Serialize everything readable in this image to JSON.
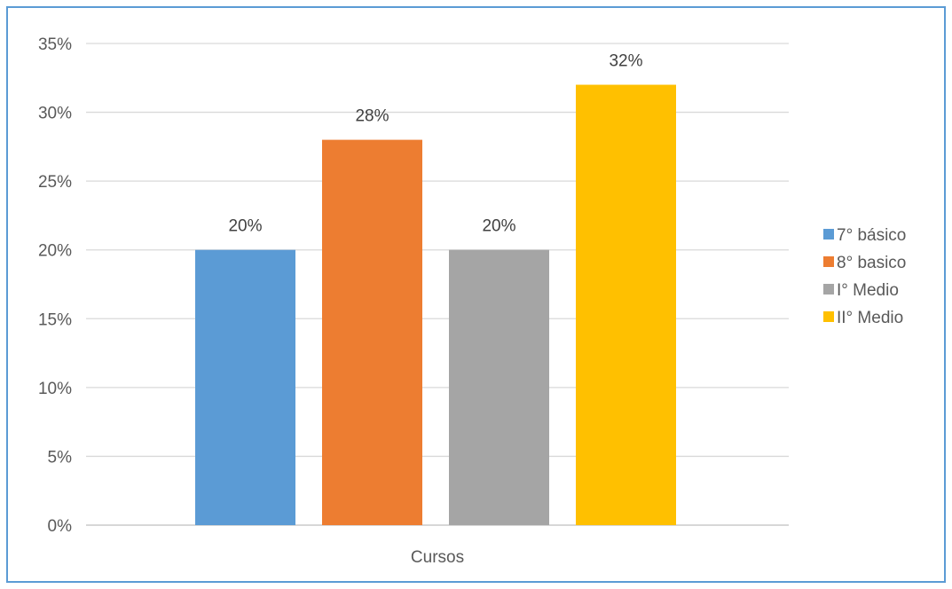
{
  "chart_data": {
    "type": "bar",
    "categories": [
      "Cursos"
    ],
    "series": [
      {
        "name": "7° básico",
        "values": [
          20
        ],
        "color": "#5b9bd5",
        "label": "20%"
      },
      {
        "name": "8° basico",
        "values": [
          28
        ],
        "color": "#ed7d31",
        "label": "28%"
      },
      {
        "name": "I° Medio",
        "values": [
          20
        ],
        "color": "#a5a5a5",
        "label": "20%"
      },
      {
        "name": "II° Medio",
        "values": [
          32
        ],
        "color": "#ffc000",
        "label": "32%"
      }
    ],
    "yticks": [
      "0%",
      "5%",
      "10%",
      "15%",
      "20%",
      "25%",
      "30%",
      "35%"
    ],
    "ylim": [
      0,
      35
    ],
    "unit": "%",
    "grid": true,
    "legend_position": "right",
    "title": "",
    "xlabel": "",
    "ylabel": ""
  }
}
